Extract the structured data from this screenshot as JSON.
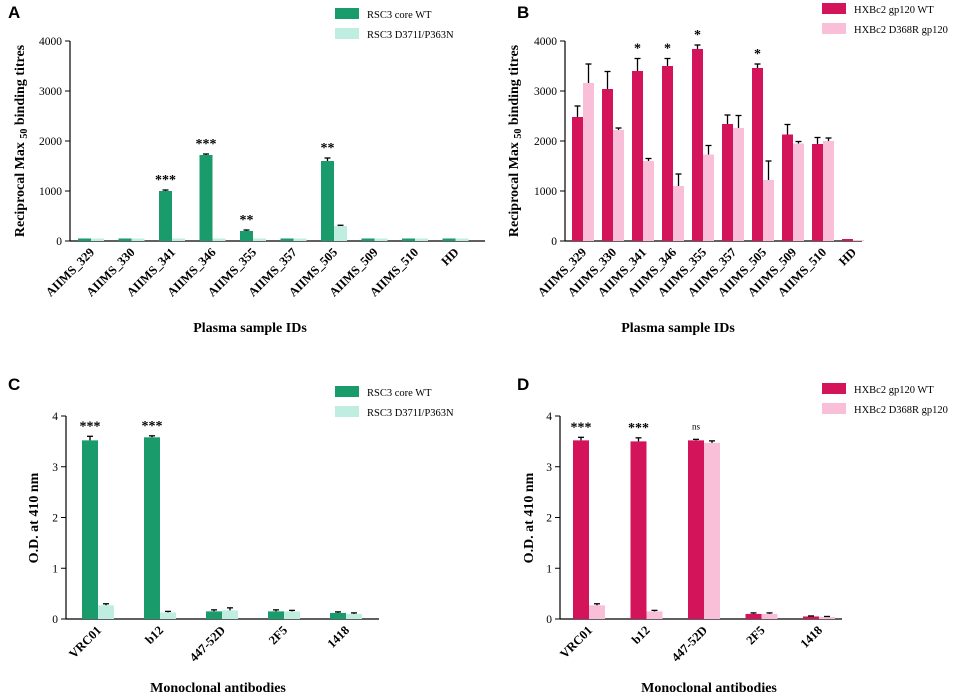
{
  "figure": {
    "colors": {
      "green_wt": "#1a9b6c",
      "green_mut": "#bfeee0",
      "pink_wt": "#d4145a",
      "pink_mut": "#f9bfd8"
    }
  },
  "chart_data": [
    {
      "panel": "A",
      "type": "bar",
      "ylabel": "Reciprocal Max 50 binding titres",
      "ylabel_parts": [
        "Reciprocal Max ",
        "50",
        " binding titres"
      ],
      "xlabel": "Plasma sample IDs",
      "ylim": [
        0,
        4000
      ],
      "yticks": [
        0,
        1000,
        2000,
        3000,
        4000
      ],
      "categories": [
        "AIIMS_329",
        "AIIMS_330",
        "AIIMS_341",
        "AIIMS_346",
        "AIIMS_355",
        "AIIMS_357",
        "AIIMS_505",
        "AIIMS_509",
        "AIIMS_510",
        "HD"
      ],
      "series": [
        {
          "name": "RSC3 core WT",
          "values": [
            50,
            50,
            1000,
            1720,
            200,
            50,
            1600,
            50,
            50,
            50
          ],
          "errors": [
            0,
            0,
            20,
            20,
            20,
            0,
            60,
            0,
            0,
            0
          ]
        },
        {
          "name": "RSC3 D371I/P363N",
          "values": [
            50,
            50,
            50,
            50,
            50,
            50,
            300,
            50,
            50,
            50
          ],
          "errors": [
            0,
            0,
            0,
            0,
            0,
            0,
            15,
            0,
            0,
            0
          ]
        }
      ],
      "annotations": [
        "",
        "",
        "***",
        "***",
        "**",
        "",
        "**",
        "",
        "",
        ""
      ]
    },
    {
      "panel": "B",
      "type": "bar",
      "ylabel": "Reciprocal Max 50 binding titres",
      "ylabel_parts": [
        "Reciprocal Max ",
        "50",
        " binding titres"
      ],
      "xlabel": "Plasma sample IDs",
      "ylim": [
        0,
        4000
      ],
      "yticks": [
        0,
        1000,
        2000,
        3000,
        4000
      ],
      "categories": [
        "AIIMS_329",
        "AIIMS_330",
        "AIIMS_341",
        "AIIMS_346",
        "AIIMS_355",
        "AIIMS_357",
        "AIIMS_505",
        "AIIMS_509",
        "AIIMS_510",
        "HD"
      ],
      "series": [
        {
          "name": "HXBc2 gp120 WT",
          "values": [
            2480,
            3040,
            3400,
            3500,
            3840,
            2340,
            3460,
            2130,
            1940,
            40
          ],
          "errors": [
            220,
            350,
            250,
            150,
            80,
            180,
            80,
            200,
            130,
            0
          ]
        },
        {
          "name": "HXBc2 D368R gp120",
          "values": [
            3160,
            2220,
            1600,
            1100,
            1730,
            2260,
            1220,
            1950,
            2000,
            20
          ],
          "errors": [
            380,
            40,
            50,
            240,
            180,
            250,
            380,
            40,
            60,
            0
          ]
        }
      ],
      "annotations": [
        "",
        "",
        "*",
        "*",
        "*",
        "",
        "*",
        "",
        "",
        ""
      ]
    },
    {
      "panel": "C",
      "type": "bar",
      "ylabel": "O.D. at 410 nm",
      "xlabel": "Monoclonal antibodies",
      "ylim": [
        0,
        4
      ],
      "yticks": [
        0,
        1,
        2,
        3,
        4
      ],
      "categories": [
        "VRC01",
        "b12",
        "447-52D",
        "2F5",
        "1418"
      ],
      "series": [
        {
          "name": "RSC3 core WT",
          "values": [
            3.52,
            3.58,
            0.15,
            0.15,
            0.12
          ],
          "errors": [
            0.08,
            0.03,
            0.03,
            0.03,
            0.02
          ]
        },
        {
          "name": "RSC3 D371I/P363N",
          "values": [
            0.27,
            0.13,
            0.17,
            0.15,
            0.1
          ],
          "errors": [
            0.03,
            0.02,
            0.05,
            0.02,
            0.02
          ]
        }
      ],
      "annotations": [
        "***",
        "***",
        "",
        "",
        ""
      ]
    },
    {
      "panel": "D",
      "type": "bar",
      "ylabel": "O.D. at 410 nm",
      "xlabel": "Monoclonal antibodies",
      "ylim": [
        0,
        4
      ],
      "yticks": [
        0,
        1,
        2,
        3,
        4
      ],
      "categories": [
        "VRC01",
        "b12",
        "447-52D",
        "2F5",
        "1418"
      ],
      "series": [
        {
          "name": "HXBc2 gp120 WT",
          "values": [
            3.52,
            3.5,
            3.52,
            0.1,
            0.05
          ],
          "errors": [
            0.06,
            0.07,
            0.02,
            0.02,
            0.01
          ]
        },
        {
          "name": "HXBc2 D368R gp120",
          "values": [
            0.27,
            0.15,
            3.47,
            0.1,
            0.04
          ],
          "errors": [
            0.03,
            0.02,
            0.04,
            0.02,
            0.01
          ]
        }
      ],
      "annotations": [
        "***",
        "***",
        "ns",
        "",
        ""
      ]
    }
  ]
}
